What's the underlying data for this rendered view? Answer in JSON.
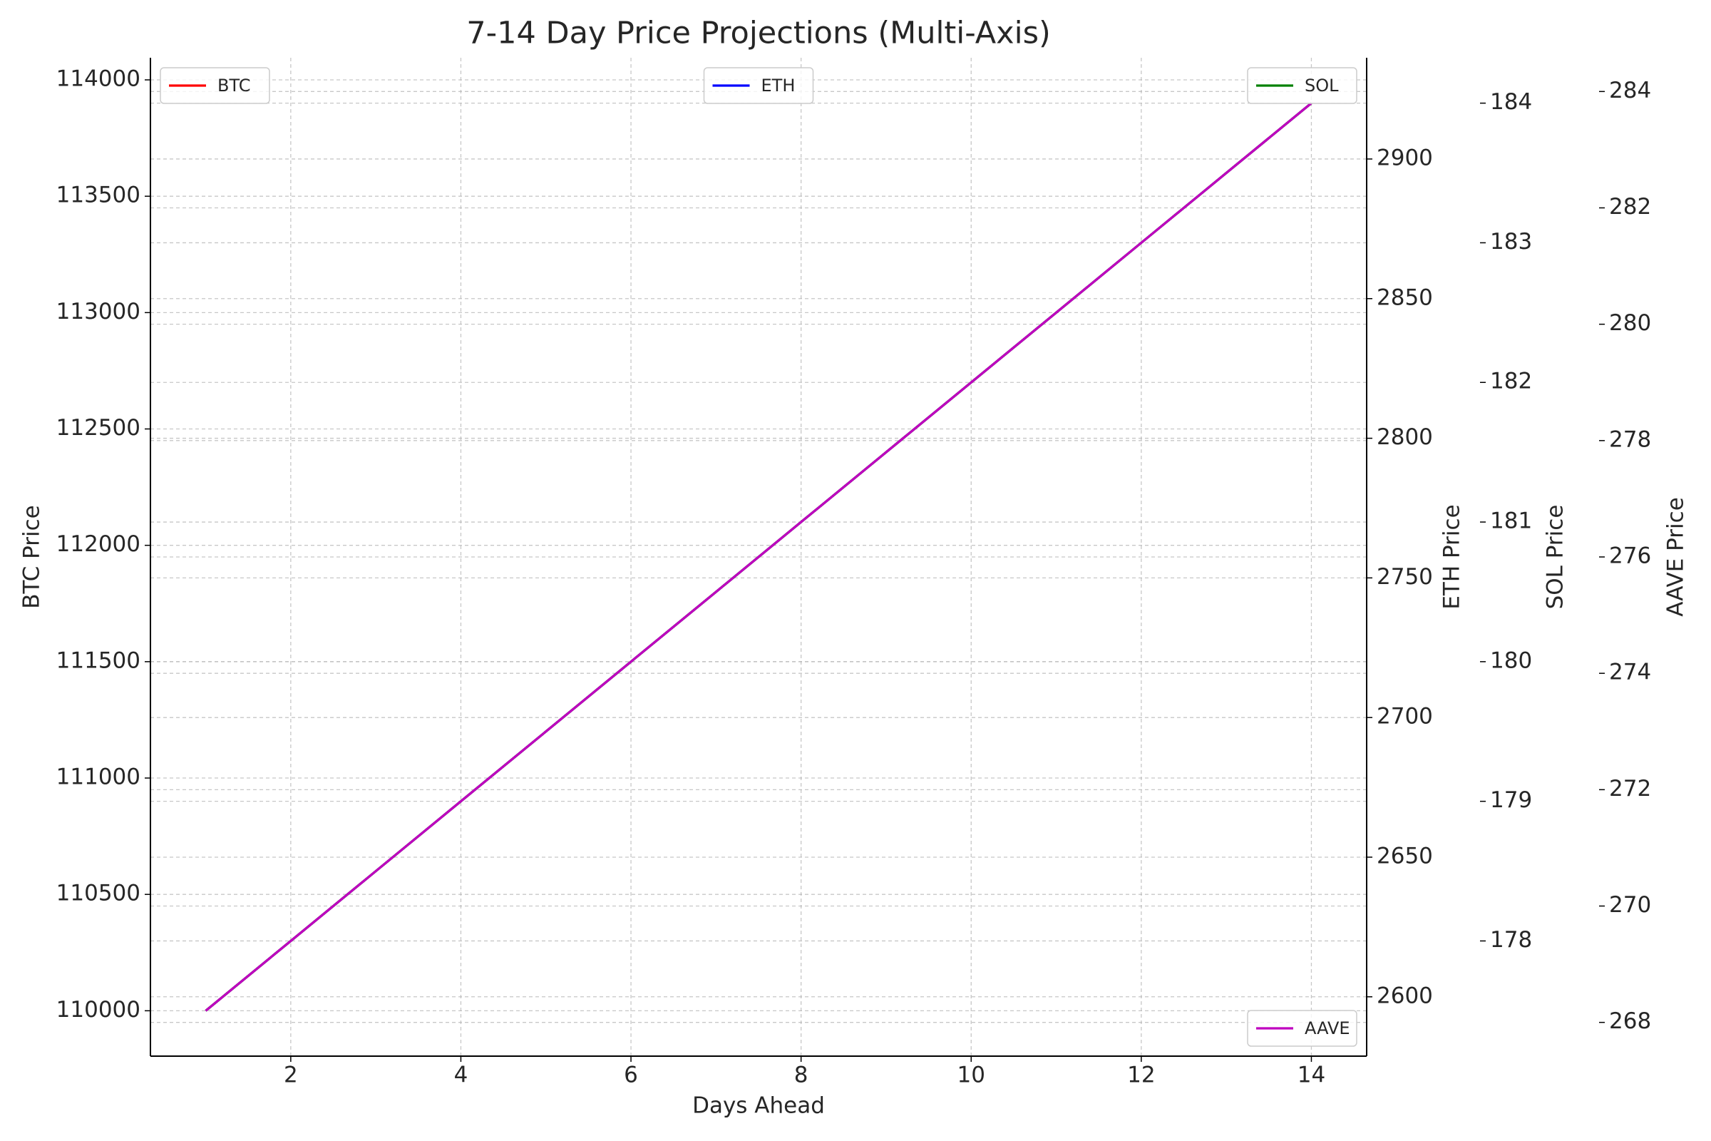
{
  "chart_data": {
    "type": "line",
    "title": "7-14 Day Price Projections (Multi-Axis)",
    "xlabel": "Days Ahead",
    "x": [
      1,
      2,
      3,
      4,
      5,
      6,
      7,
      8,
      9,
      10,
      11,
      12,
      13,
      14
    ],
    "xlim": [
      0.35,
      14.65
    ],
    "xticks": [
      2,
      4,
      6,
      8,
      10,
      12,
      14
    ],
    "grid": true,
    "yaxes": [
      {
        "id": "y",
        "label": "BTC Price",
        "lim": [
          109805,
          114095
        ],
        "ticks": [
          110000,
          110500,
          111000,
          111500,
          112000,
          112500,
          113000,
          113500,
          114000
        ]
      },
      {
        "id": "y2",
        "label": "ETH Price",
        "lim": [
          2578.75,
          2936.25
        ],
        "ticks": [
          2600,
          2650,
          2700,
          2750,
          2800,
          2850,
          2900
        ]
      },
      {
        "id": "y3",
        "label": "SOL Price",
        "lim": [
          177.175,
          184.325
        ],
        "ticks": [
          178,
          179,
          180,
          181,
          182,
          183,
          184
        ]
      },
      {
        "id": "y4",
        "label": "AAVE Price",
        "lim": [
          267.42,
          284.58
        ],
        "ticks": [
          268,
          270,
          272,
          274,
          276,
          278,
          280,
          282,
          284
        ]
      }
    ],
    "series": [
      {
        "name": "BTC",
        "color": "#ff0000",
        "axis": "y",
        "legend_loc": "upper left",
        "values": [
          110000,
          110300,
          110600,
          110900,
          111200,
          111500,
          111800,
          112100,
          112400,
          112700,
          113000,
          113300,
          113600,
          113900
        ]
      },
      {
        "name": "ETH",
        "color": "#0000ff",
        "axis": "y2",
        "legend_loc": "upper center",
        "values": [
          2595,
          2620,
          2645,
          2670,
          2695,
          2720,
          2745,
          2770,
          2795,
          2820,
          2845,
          2870,
          2895,
          2920
        ]
      },
      {
        "name": "SOL",
        "color": "#008000",
        "axis": "y3",
        "legend_loc": "upper right",
        "values": [
          177.5,
          178,
          178.5,
          179,
          179.5,
          180,
          180.5,
          181,
          181.5,
          182,
          182.5,
          183,
          183.5,
          184
        ]
      },
      {
        "name": "AAVE",
        "color": "#bf00bf",
        "axis": "y4",
        "legend_loc": "lower right",
        "values": [
          268.2,
          269.4,
          270.6,
          271.8,
          273,
          274.2,
          275.4,
          276.6,
          277.8,
          279,
          280.2,
          281.4,
          282.6,
          283.8
        ]
      }
    ]
  }
}
